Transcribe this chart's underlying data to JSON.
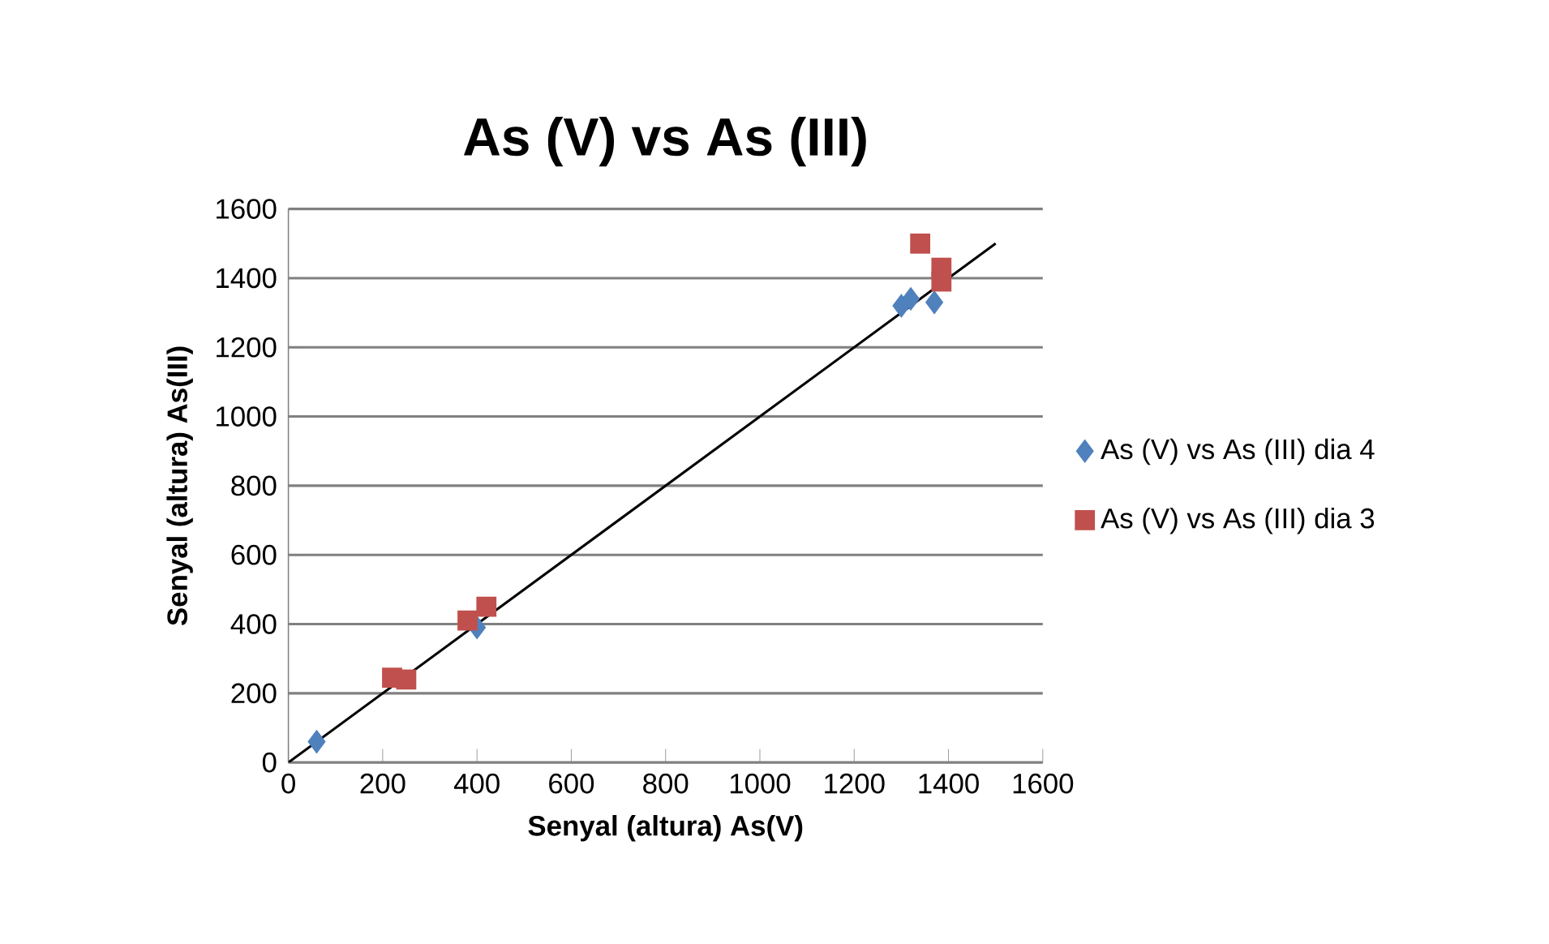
{
  "chart_data": {
    "type": "scatter",
    "title": "As (V) vs As (III)",
    "xlabel": "Senyal (altura) As(V)",
    "ylabel": "Senyal (altura) As(III)",
    "xlim": [
      0,
      1600
    ],
    "xticks": [
      0,
      200,
      400,
      600,
      800,
      1000,
      1200,
      1400,
      1600
    ],
    "ylim": [
      0,
      1600
    ],
    "yticks": [
      0,
      200,
      400,
      600,
      800,
      1000,
      1200,
      1400,
      1600
    ],
    "grid": "y",
    "legend": "right",
    "series": [
      {
        "name": "As (V) vs As (III) dia 4",
        "color": "#4f81bd",
        "marker": "diamond",
        "x": [
          60,
          250,
          400,
          1300,
          1320,
          1370
        ],
        "values": [
          60,
          null,
          390,
          1320,
          1340,
          1330
        ]
      },
      {
        "name": "As (V) vs As (III) dia 3",
        "color": "#c0504d",
        "marker": "square",
        "x": [
          220,
          250,
          380,
          420,
          1340,
          1385,
          1385
        ],
        "values": [
          245,
          240,
          410,
          450,
          1500,
          1430,
          1390
        ]
      },
      {
        "type": "line",
        "color": "#000000",
        "marker": "none",
        "x": [
          0,
          1500
        ],
        "values": [
          0,
          1500
        ]
      }
    ]
  }
}
